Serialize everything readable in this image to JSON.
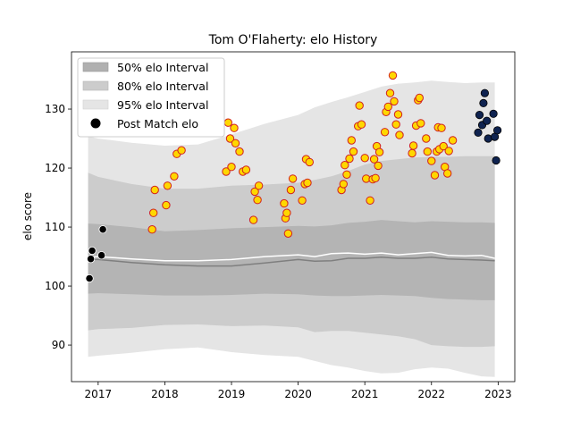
{
  "chart_data": {
    "type": "scatter",
    "title": "Tom O'Flaherty: elo History",
    "xlabel": "",
    "ylabel": "elo score",
    "xlim": [
      2016.6,
      2023.25
    ],
    "ylim": [
      83.8,
      139.7
    ],
    "x_ticks": [
      2017,
      2018,
      2019,
      2020,
      2021,
      2022,
      2023
    ],
    "x_tick_labels": [
      "2017",
      "2018",
      "2019",
      "2020",
      "2021",
      "2022",
      "2023"
    ],
    "y_ticks": [
      90,
      100,
      110,
      120,
      130
    ],
    "y_tick_labels": [
      "90",
      "100",
      "110",
      "120",
      "130"
    ],
    "grid": false,
    "legend_position": "top-left",
    "legend": [
      {
        "label": "50% elo Interval",
        "kind": "band",
        "color": "#b0b0b0"
      },
      {
        "label": "80% elo Interval",
        "kind": "band",
        "color": "#cccccc"
      },
      {
        "label": "95% elo Interval",
        "kind": "band",
        "color": "#e5e5e5"
      },
      {
        "label": "Post Match elo",
        "kind": "marker",
        "color": "#000000"
      }
    ],
    "bands": {
      "x": [
        2016.85,
        2017.0,
        2017.5,
        2018.0,
        2018.5,
        2019.0,
        2019.5,
        2020.0,
        2020.25,
        2020.5,
        2020.75,
        2021.0,
        2021.25,
        2021.5,
        2021.75,
        2022.0,
        2022.25,
        2022.5,
        2022.75,
        2022.95
      ],
      "median": [
        104.5,
        104.5,
        104.0,
        103.6,
        103.4,
        103.4,
        103.9,
        104.5,
        104.2,
        104.3,
        104.7,
        104.7,
        104.9,
        104.7,
        104.7,
        104.9,
        104.6,
        104.5,
        104.4,
        104.3
      ],
      "mean": [
        104.9,
        105.0,
        104.6,
        104.3,
        104.3,
        104.5,
        105.0,
        105.3,
        105.0,
        105.5,
        105.6,
        105.4,
        105.6,
        105.3,
        105.5,
        105.7,
        105.2,
        105.1,
        105.2,
        104.7
      ],
      "p50": [
        [
          98.7,
          110.6
        ],
        [
          98.8,
          110.5
        ],
        [
          98.6,
          110.0
        ],
        [
          98.4,
          109.3
        ],
        [
          98.4,
          109.5
        ],
        [
          98.5,
          109.8
        ],
        [
          98.7,
          110.0
        ],
        [
          98.6,
          110.2
        ],
        [
          98.4,
          110.1
        ],
        [
          98.3,
          110.3
        ],
        [
          98.3,
          110.7
        ],
        [
          98.4,
          110.9
        ],
        [
          98.5,
          111.2
        ],
        [
          98.4,
          111.0
        ],
        [
          98.3,
          110.8
        ],
        [
          98.0,
          111.0
        ],
        [
          97.8,
          110.9
        ],
        [
          97.7,
          110.8
        ],
        [
          97.6,
          110.8
        ],
        [
          97.6,
          110.7
        ]
      ],
      "p80": [
        [
          92.5,
          119.2
        ],
        [
          92.7,
          118.5
        ],
        [
          92.9,
          117.3
        ],
        [
          93.4,
          116.5
        ],
        [
          93.5,
          116.5
        ],
        [
          93.2,
          117.0
        ],
        [
          93.3,
          117.2
        ],
        [
          93.0,
          117.5
        ],
        [
          92.2,
          118.0
        ],
        [
          92.4,
          118.6
        ],
        [
          92.4,
          119.5
        ],
        [
          92.1,
          120.6
        ],
        [
          91.8,
          121.2
        ],
        [
          91.5,
          121.5
        ],
        [
          91.0,
          121.8
        ],
        [
          90.0,
          121.9
        ],
        [
          89.8,
          121.9
        ],
        [
          89.7,
          122.0
        ],
        [
          89.7,
          122.0
        ],
        [
          89.8,
          122.0
        ]
      ],
      "p95": [
        [
          88.0,
          125.4
        ],
        [
          88.2,
          125.0
        ],
        [
          88.7,
          124.3
        ],
        [
          89.3,
          123.8
        ],
        [
          89.6,
          124.0
        ],
        [
          88.8,
          125.7
        ],
        [
          88.3,
          127.5
        ],
        [
          88.0,
          129.0
        ],
        [
          87.3,
          130.3
        ],
        [
          86.6,
          131.2
        ],
        [
          86.2,
          132.0
        ],
        [
          85.6,
          132.9
        ],
        [
          85.2,
          133.8
        ],
        [
          85.3,
          134.3
        ],
        [
          85.9,
          134.5
        ],
        [
          86.2,
          134.8
        ],
        [
          86.0,
          134.6
        ],
        [
          85.3,
          134.4
        ],
        [
          84.7,
          134.5
        ],
        [
          84.6,
          134.5
        ]
      ]
    },
    "series": [
      {
        "style": "black",
        "points": [
          [
            2016.87,
            101.3
          ],
          [
            2016.89,
            104.6
          ],
          [
            2016.91,
            106.0
          ],
          [
            2017.05,
            105.2
          ],
          [
            2017.07,
            109.6
          ]
        ]
      },
      {
        "style": "yellow",
        "points": [
          [
            2017.81,
            109.6
          ],
          [
            2017.83,
            112.4
          ],
          [
            2017.85,
            116.3
          ],
          [
            2018.02,
            113.7
          ],
          [
            2018.04,
            117.0
          ],
          [
            2018.14,
            118.6
          ],
          [
            2018.18,
            122.4
          ],
          [
            2018.25,
            123.0
          ],
          [
            2018.92,
            119.4
          ],
          [
            2018.95,
            127.7
          ],
          [
            2018.98,
            125.0
          ],
          [
            2019.0,
            120.2
          ],
          [
            2019.04,
            126.8
          ],
          [
            2019.06,
            124.2
          ],
          [
            2019.12,
            122.8
          ],
          [
            2019.17,
            119.4
          ],
          [
            2019.22,
            119.7
          ],
          [
            2019.33,
            111.2
          ],
          [
            2019.35,
            116.0
          ],
          [
            2019.39,
            114.6
          ],
          [
            2019.41,
            117.0
          ],
          [
            2019.79,
            114.0
          ],
          [
            2019.81,
            111.5
          ],
          [
            2019.83,
            112.4
          ],
          [
            2019.85,
            108.9
          ],
          [
            2019.89,
            116.3
          ],
          [
            2019.92,
            118.2
          ],
          [
            2020.06,
            114.5
          ],
          [
            2020.1,
            117.3
          ],
          [
            2020.12,
            121.5
          ],
          [
            2020.14,
            117.5
          ],
          [
            2020.17,
            121.0
          ],
          [
            2020.65,
            116.3
          ],
          [
            2020.68,
            117.3
          ],
          [
            2020.7,
            120.5
          ],
          [
            2020.73,
            118.9
          ],
          [
            2020.77,
            121.6
          ],
          [
            2020.8,
            124.7
          ],
          [
            2020.83,
            122.8
          ],
          [
            2020.9,
            127.1
          ],
          [
            2020.92,
            130.6
          ],
          [
            2020.95,
            127.4
          ],
          [
            2021.0,
            121.7
          ],
          [
            2021.02,
            118.2
          ],
          [
            2021.08,
            114.5
          ],
          [
            2021.12,
            118.1
          ],
          [
            2021.14,
            121.5
          ],
          [
            2021.16,
            118.3
          ],
          [
            2021.18,
            123.7
          ],
          [
            2021.2,
            120.4
          ],
          [
            2021.22,
            122.7
          ],
          [
            2021.3,
            126.1
          ],
          [
            2021.32,
            129.5
          ],
          [
            2021.35,
            130.4
          ],
          [
            2021.38,
            132.7
          ],
          [
            2021.42,
            135.7
          ],
          [
            2021.44,
            131.3
          ],
          [
            2021.47,
            127.4
          ],
          [
            2021.5,
            129.1
          ],
          [
            2021.52,
            125.6
          ],
          [
            2021.71,
            122.5
          ],
          [
            2021.73,
            123.8
          ],
          [
            2021.77,
            127.2
          ],
          [
            2021.8,
            131.5
          ],
          [
            2021.82,
            131.9
          ],
          [
            2021.84,
            127.6
          ],
          [
            2021.92,
            125.0
          ],
          [
            2021.94,
            122.8
          ],
          [
            2022.0,
            121.2
          ],
          [
            2022.05,
            118.8
          ],
          [
            2022.08,
            122.8
          ],
          [
            2022.1,
            126.9
          ],
          [
            2022.12,
            123.2
          ],
          [
            2022.15,
            126.8
          ],
          [
            2022.18,
            123.7
          ],
          [
            2022.2,
            120.2
          ],
          [
            2022.24,
            119.1
          ],
          [
            2022.26,
            122.9
          ],
          [
            2022.32,
            124.7
          ]
        ]
      },
      {
        "style": "navy",
        "points": [
          [
            2022.7,
            126.0
          ],
          [
            2022.72,
            129.0
          ],
          [
            2022.76,
            127.3
          ],
          [
            2022.78,
            131.0
          ],
          [
            2022.8,
            132.7
          ],
          [
            2022.83,
            128.0
          ],
          [
            2022.85,
            125.0
          ],
          [
            2022.93,
            129.2
          ],
          [
            2022.95,
            125.3
          ],
          [
            2022.97,
            121.3
          ],
          [
            2022.99,
            126.4
          ]
        ]
      }
    ]
  }
}
